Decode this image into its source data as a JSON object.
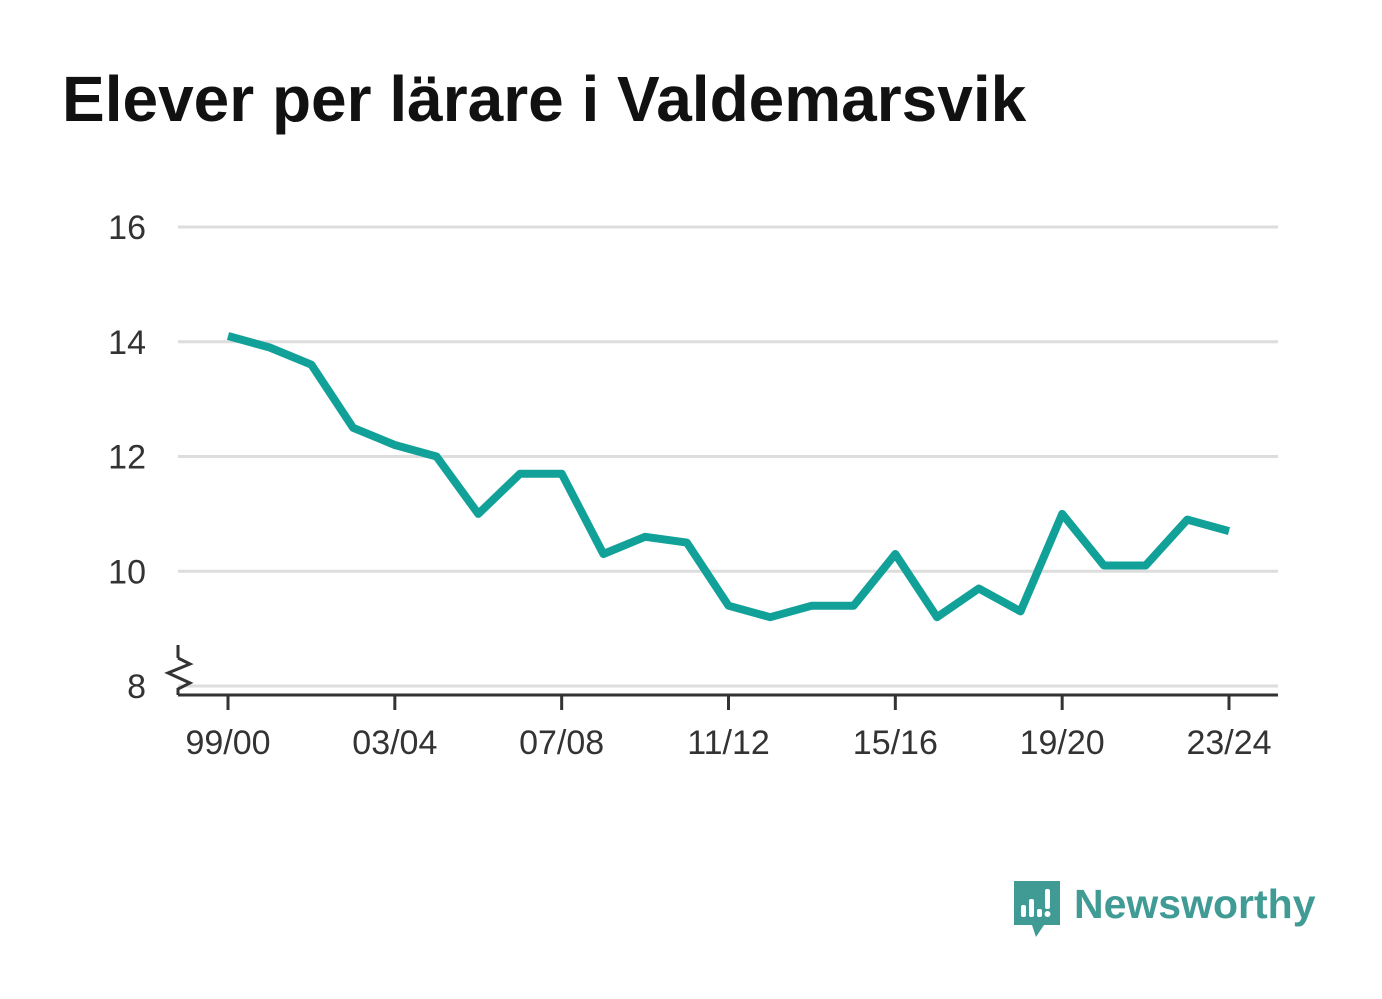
{
  "title": "Elever per lärare i Valdemarsvik",
  "brand": {
    "name": "Newsworthy",
    "icon": "newsworthy-logo-icon",
    "color": "#3f9b94"
  },
  "colors": {
    "line": "#12a198",
    "grid": "#dddddd",
    "axis": "#333333",
    "text": "#333333"
  },
  "chart_data": {
    "type": "line",
    "title": "Elever per lärare i Valdemarsvik",
    "xlabel": "",
    "ylabel": "",
    "x": [
      "99/00",
      "00/01",
      "01/02",
      "02/03",
      "03/04",
      "04/05",
      "05/06",
      "06/07",
      "07/08",
      "08/09",
      "09/10",
      "10/11",
      "11/12",
      "12/13",
      "13/14",
      "14/15",
      "15/16",
      "16/17",
      "17/18",
      "18/19",
      "19/20",
      "20/21",
      "21/22",
      "22/23",
      "23/24"
    ],
    "xticks": [
      "99/00",
      "03/04",
      "07/08",
      "11/12",
      "15/16",
      "19/20",
      "23/24"
    ],
    "yticks": [
      8,
      10,
      12,
      14,
      16
    ],
    "ylim": [
      8,
      16
    ],
    "y_axis_break": true,
    "grid": true,
    "series": [
      {
        "values": [
          14.1,
          13.9,
          13.6,
          12.5,
          12.2,
          12.0,
          11.0,
          11.7,
          11.7,
          10.3,
          10.6,
          10.5,
          9.4,
          9.2,
          9.4,
          9.4,
          10.3,
          9.2,
          9.7,
          9.3,
          11.0,
          10.1,
          10.1,
          10.9,
          10.7
        ]
      }
    ]
  }
}
